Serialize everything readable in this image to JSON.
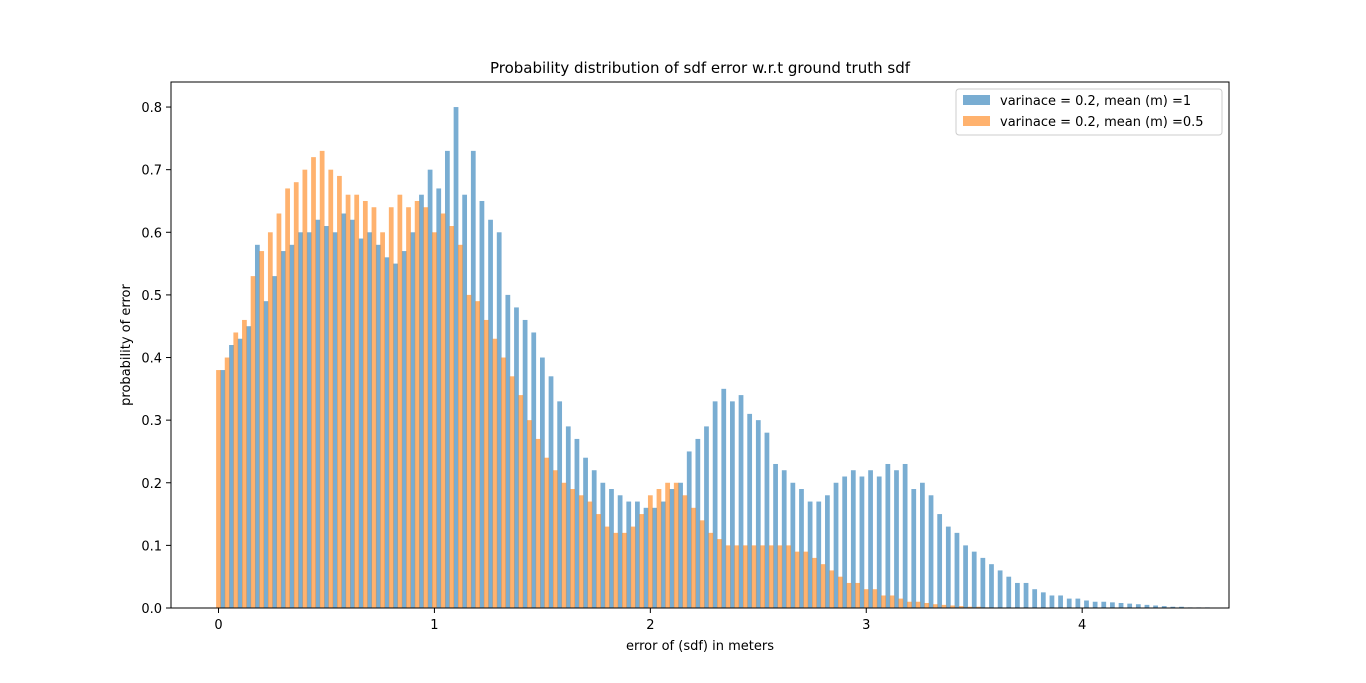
{
  "chart_data": {
    "type": "bar",
    "title": "Probability distribution of sdf error w.r.t ground truth sdf",
    "xlabel": "error of (sdf) in meters",
    "ylabel": "probability of error",
    "xlim": [
      -0.22,
      4.68
    ],
    "ylim": [
      0,
      0.84
    ],
    "xticks": [
      0,
      1,
      2,
      3,
      4
    ],
    "yticks": [
      0.0,
      0.1,
      0.2,
      0.3,
      0.4,
      0.5,
      0.6,
      0.7,
      0.8
    ],
    "x_tick_labels": [
      "0",
      "1",
      "2",
      "3",
      "4"
    ],
    "y_tick_labels": [
      "0.0",
      "0.1",
      "0.2",
      "0.3",
      "0.4",
      "0.5",
      "0.6",
      "0.7",
      "0.8"
    ],
    "grid": false,
    "legend_position": "upper right",
    "bar_width": 0.004,
    "series": [
      {
        "name": "varinace = 0.2, mean (m) =1",
        "color": "#1f77b4",
        "alpha": 0.6,
        "x_start": 0.02,
        "x_step": 0.04,
        "values": [
          0.38,
          0.42,
          0.43,
          0.45,
          0.58,
          0.49,
          0.53,
          0.57,
          0.58,
          0.6,
          0.6,
          0.62,
          0.61,
          0.6,
          0.63,
          0.62,
          0.59,
          0.6,
          0.58,
          0.56,
          0.55,
          0.57,
          0.6,
          0.66,
          0.7,
          0.67,
          0.73,
          0.8,
          0.66,
          0.73,
          0.65,
          0.62,
          0.6,
          0.5,
          0.48,
          0.46,
          0.44,
          0.4,
          0.37,
          0.33,
          0.29,
          0.27,
          0.24,
          0.22,
          0.2,
          0.19,
          0.18,
          0.17,
          0.17,
          0.16,
          0.16,
          0.17,
          0.19,
          0.2,
          0.25,
          0.27,
          0.29,
          0.33,
          0.35,
          0.33,
          0.34,
          0.31,
          0.3,
          0.28,
          0.23,
          0.22,
          0.2,
          0.19,
          0.17,
          0.17,
          0.18,
          0.2,
          0.21,
          0.22,
          0.21,
          0.22,
          0.21,
          0.23,
          0.22,
          0.23,
          0.19,
          0.2,
          0.18,
          0.15,
          0.13,
          0.12,
          0.1,
          0.09,
          0.08,
          0.07,
          0.06,
          0.05,
          0.04,
          0.04,
          0.03,
          0.025,
          0.02,
          0.02,
          0.015,
          0.015,
          0.012,
          0.01,
          0.01,
          0.009,
          0.008,
          0.007,
          0.006,
          0.005,
          0.004,
          0.003,
          0.002,
          0.002,
          0.001,
          0.001,
          0.001
        ]
      },
      {
        "name": "varinace = 0.2, mean (m) =0.5",
        "color": "#ff7f0e",
        "alpha": 0.6,
        "x_start": 0.0,
        "x_step": 0.04,
        "values": [
          0.38,
          0.4,
          0.44,
          0.46,
          0.53,
          0.57,
          0.6,
          0.63,
          0.67,
          0.68,
          0.7,
          0.72,
          0.73,
          0.7,
          0.69,
          0.66,
          0.66,
          0.65,
          0.64,
          0.6,
          0.64,
          0.66,
          0.64,
          0.65,
          0.64,
          0.6,
          0.63,
          0.61,
          0.58,
          0.5,
          0.49,
          0.46,
          0.43,
          0.4,
          0.37,
          0.34,
          0.3,
          0.27,
          0.24,
          0.22,
          0.2,
          0.19,
          0.18,
          0.17,
          0.15,
          0.13,
          0.12,
          0.12,
          0.13,
          0.15,
          0.18,
          0.19,
          0.2,
          0.2,
          0.18,
          0.16,
          0.14,
          0.12,
          0.11,
          0.1,
          0.1,
          0.1,
          0.1,
          0.1,
          0.1,
          0.1,
          0.1,
          0.09,
          0.09,
          0.08,
          0.07,
          0.06,
          0.05,
          0.04,
          0.04,
          0.03,
          0.03,
          0.02,
          0.02,
          0.015,
          0.01,
          0.01,
          0.008,
          0.006,
          0.005,
          0.004,
          0.003,
          0.002,
          0.002,
          0.001
        ]
      }
    ]
  }
}
